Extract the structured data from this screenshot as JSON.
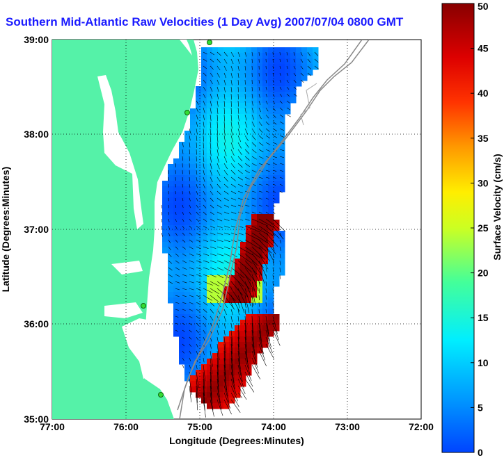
{
  "title": "Southern Mid-Atlantic Raw Velocities (1 Day Avg) 2007/07/04 0800 GMT",
  "x_axis": {
    "label": "Longitude (Degrees:Minutes)",
    "ticks": [
      "77:00",
      "76:00",
      "75:00",
      "74:00",
      "73:00",
      "72:00"
    ]
  },
  "y_axis": {
    "label": "Latitude (Degrees:Minutes)",
    "ticks": [
      "39:00",
      "38:00",
      "37:00",
      "36:00",
      "35:00"
    ]
  },
  "colorbar": {
    "label": "Surface Velocity (cm/s)",
    "ticks": [
      "50",
      "45",
      "40",
      "35",
      "30",
      "25",
      "20",
      "15",
      "10",
      "5",
      "0"
    ],
    "min": 0,
    "max": 50
  },
  "colors": {
    "land": "#55f2a8",
    "title": "#1a1aff",
    "station": "#33dd33"
  }
}
